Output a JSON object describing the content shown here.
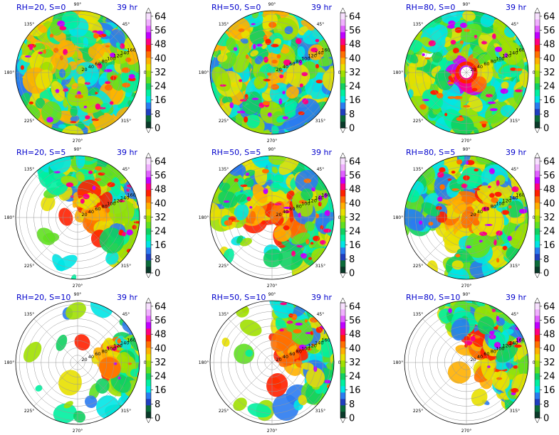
{
  "chart_data": {
    "type": "polar-filled-contour",
    "time_label": "39 hr",
    "angle_ticks": [
      "0°",
      "45°",
      "90°",
      "135°",
      "180°",
      "225°",
      "270°",
      "315°"
    ],
    "radial_ticks": [
      20,
      40,
      60,
      80,
      100,
      120,
      140,
      160
    ],
    "colorbar": {
      "ticks": [
        0,
        8,
        16,
        24,
        32,
        40,
        48,
        56,
        64
      ],
      "colors": [
        "#0a3a2a",
        "#0b6b3a",
        "#1f3fbf",
        "#2b7bf0",
        "#00e5e5",
        "#00f0a0",
        "#10d060",
        "#60e020",
        "#a0e000",
        "#e8e000",
        "#ffb000",
        "#ff7000",
        "#ff2000",
        "#ff0080",
        "#c000ff",
        "#e060ff",
        "#f0b0ff",
        "#f8e0ff"
      ]
    },
    "panels": [
      {
        "label": "RH=20, S=0",
        "pattern": "rings",
        "coverage": 0.82,
        "center_dx": 0,
        "center_dy": 0
      },
      {
        "label": "RH=50, S=0",
        "pattern": "spiral",
        "coverage": 1.0,
        "center_dx": 0,
        "center_dy": 0
      },
      {
        "label": "RH=80, S=0",
        "pattern": "eyewall",
        "coverage": 0.95,
        "center_dx": 0,
        "center_dy": 0
      },
      {
        "label": "RH=20, S=5",
        "pattern": "sector",
        "sector_center": 40,
        "sector_width": 200,
        "coverage": 0.55,
        "center_dx": 0.25,
        "center_dy": 0.05
      },
      {
        "label": "RH=50, S=5",
        "pattern": "sector",
        "sector_center": 60,
        "sector_width": 260,
        "coverage": 0.75,
        "center_dx": 0.1,
        "center_dy": 0.05
      },
      {
        "label": "RH=80, S=5",
        "pattern": "sector",
        "sector_center": 45,
        "sector_width": 300,
        "coverage": 0.9,
        "center_dx": 0.05,
        "center_dy": 0.05
      },
      {
        "label": "RH=20, S=10",
        "pattern": "sector",
        "sector_center": -5,
        "sector_width": 90,
        "coverage": 0.35,
        "center_dx": 0.45,
        "center_dy": 0.1
      },
      {
        "label": "RH=50, S=10",
        "pattern": "sector",
        "sector_center": 25,
        "sector_width": 130,
        "coverage": 0.45,
        "center_dx": 0.25,
        "center_dy": 0.1
      },
      {
        "label": "RH=80, S=10",
        "pattern": "sector",
        "sector_center": 35,
        "sector_width": 170,
        "coverage": 0.6,
        "center_dx": 0.2,
        "center_dy": 0.05
      }
    ]
  }
}
